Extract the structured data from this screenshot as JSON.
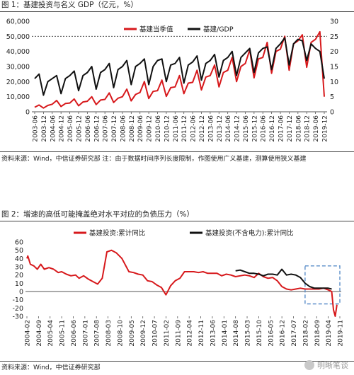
{
  "figure1": {
    "title": "图 1：基建投资与名义 GDP（亿元，%）",
    "source": "资料来源：Wind，中信证券研究部 注：由于数据时间序列长度限制，作图使用广义基建，测算使用狭义基建"
  },
  "figure2": {
    "title": "图 2：增速的高低可能掩盖绝对水平对应的负债压力（%）",
    "source": "资料来源：Wind，中信证券研究部"
  },
  "watermark": "明晰笔谈",
  "colors": {
    "red": "#d7191c",
    "black": "#111111",
    "box": "#5b8ec9",
    "grid_dash": "#333333"
  },
  "chart_data": [
    {
      "type": "line",
      "x_ticks": [
        "2003-06",
        "2003-12",
        "2004-06",
        "2004-12",
        "2005-06",
        "2005-12",
        "2006-06",
        "2006-12",
        "2007-06",
        "2007-12",
        "2008-06",
        "2008-12",
        "2009-06",
        "2009-12",
        "2010-06",
        "2010-12",
        "2011-06",
        "2011-12",
        "2012-06",
        "2012-12",
        "2013-06",
        "2013-12",
        "2014-06",
        "2014-12",
        "2015-06",
        "2015-12",
        "2016-06",
        "2016-12",
        "2017-06",
        "2017-12",
        "2018-06",
        "2018-12",
        "2019-06",
        "2019-12"
      ],
      "ylim_left": [
        0,
        60000
      ],
      "yticks_left": [
        "0",
        "10,000",
        "20,000",
        "30,000",
        "40,000",
        "50,000",
        "60,000"
      ],
      "ylim_right": [
        0,
        30
      ],
      "yticks_right": [
        "0",
        "5",
        "10",
        "15",
        "20",
        "25",
        "30"
      ],
      "reference_line_left": 50000,
      "legend_position": "top-center",
      "series": [
        {
          "name": "基建当季值",
          "axis": "left",
          "color": "#d7191c",
          "values": [
            3000,
            4500,
            2500,
            4200,
            5000,
            7500,
            3500,
            5500,
            5800,
            8500,
            4000,
            6500,
            7000,
            10000,
            4800,
            7800,
            8200,
            12500,
            6200,
            9000,
            10000,
            15000,
            7200,
            11500,
            12800,
            20000,
            8800,
            13500,
            14000,
            21000,
            10200,
            16000,
            16500,
            24000,
            12000,
            19000,
            19500,
            27500,
            14500,
            23000,
            24000,
            31000,
            16500,
            26000,
            27500,
            36000,
            20000,
            30000,
            32000,
            41000,
            22500,
            35000,
            36000,
            46000,
            25500,
            40000,
            41500,
            50000,
            27500,
            45000,
            47000,
            51000,
            29500,
            46000,
            48000,
            53000,
            10000
          ]
        },
        {
          "name": "基建/GDP",
          "axis": "right",
          "color": "#111111",
          "values": [
            11,
            12.5,
            5.5,
            10,
            11,
            12,
            6,
            11,
            12,
            13.5,
            7,
            12,
            13,
            15,
            7.5,
            13,
            14,
            16,
            8,
            14,
            15,
            17,
            9,
            15,
            16,
            17.5,
            9,
            15,
            17,
            17.5,
            10,
            15.5,
            16,
            18,
            9.5,
            15.5,
            16.5,
            18.5,
            10.5,
            16,
            17,
            19,
            11.5,
            17,
            18,
            20,
            12,
            18,
            19.5,
            21,
            13,
            19.5,
            21,
            21.5,
            14,
            21,
            22.5,
            24.5,
            15.5,
            22.5,
            24,
            23.5,
            17,
            22.5,
            21,
            20,
            11
          ]
        }
      ]
    },
    {
      "type": "line",
      "x_ticks": [
        "2004-02",
        "2004-09",
        "2005-04",
        "2005-11",
        "2006-06",
        "2007-01",
        "2007-08",
        "2008-03",
        "2008-10",
        "2009-05",
        "2009-12",
        "2010-07",
        "2011-02",
        "2011-09",
        "2012-04",
        "2012-11",
        "2013-06",
        "2014-01",
        "2014-08",
        "2015-03",
        "2015-10",
        "2016-05",
        "2016-12",
        "2017-07",
        "2018-02",
        "2018-09",
        "2019-04",
        "2019-11"
      ],
      "ylim": [
        -30,
        60
      ],
      "yticks": [
        "-30",
        "-20",
        "-10",
        "0",
        "10",
        "20",
        "30",
        "40",
        "50",
        "60"
      ],
      "legend_position": "top",
      "series": [
        {
          "name": "基建投资:累计同比",
          "color": "#d7191c",
          "x": [
            0,
            0.08,
            0.3,
            0.6,
            0.9,
            1.2,
            1.5,
            1.9,
            2.3,
            2.7,
            3.0,
            3.4,
            3.8,
            4.2,
            4.5,
            4.9,
            5.3,
            5.7,
            6.1,
            6.5,
            6.9,
            7.3,
            7.7,
            8.2,
            8.8,
            9.2,
            9.6,
            10.0,
            10.4,
            10.8,
            11.2,
            11.6,
            12.0,
            12.4,
            12.8,
            13.2,
            13.6,
            14.0,
            14.4,
            14.8,
            15.2,
            15.6,
            16.0,
            16.4,
            16.8,
            17.2,
            17.6,
            18.0,
            18.4,
            18.8,
            19.2,
            19.6,
            20.0,
            20.4,
            20.8,
            21.2,
            21.6,
            22.0,
            22.4,
            22.8,
            23.2,
            23.6,
            24.0,
            24.4,
            24.8,
            25.2,
            25.6,
            26.0,
            26.3,
            26.45,
            26.6,
            26.75
          ],
          "values": [
            40,
            43,
            33,
            31,
            27,
            33,
            27,
            29,
            27,
            23,
            24,
            21,
            19,
            20,
            16,
            19,
            15,
            12,
            9,
            16,
            48,
            50,
            47,
            40,
            24,
            23,
            21,
            20,
            13,
            12,
            8,
            5,
            -4,
            7,
            13,
            16,
            24,
            24,
            24,
            23,
            24,
            22,
            22,
            22,
            19,
            21,
            20,
            18,
            19,
            20,
            19,
            17,
            22,
            18,
            16,
            17,
            13,
            6,
            3,
            2,
            3,
            4,
            3,
            3,
            3,
            3,
            4,
            2,
            0,
            -22,
            -30,
            -16
          ]
        },
        {
          "name": "基建投资(不含电力):累计同比",
          "color": "#111111",
          "x": [
            18.0,
            18.4,
            18.8,
            19.2,
            19.6,
            20.0,
            20.4,
            20.8,
            21.2,
            21.6,
            22.0,
            22.4,
            22.8,
            23.2,
            23.6,
            24.0,
            24.4,
            24.8,
            25.2,
            25.6,
            26.0,
            26.3
          ],
          "values": [
            25,
            26,
            24,
            22,
            22,
            21,
            19,
            21,
            21,
            20,
            27,
            20,
            21,
            20,
            17,
            10,
            6,
            4,
            4,
            4,
            4,
            3
          ]
        }
      ],
      "highlight_boxes": [
        {
          "x_range": [
            "2008-10",
            "2010-04"
          ],
          "y_range": [
            -4,
            60
          ]
        },
        {
          "x_range": [
            "2018-02",
            "2019-11"
          ],
          "y_range": [
            -15,
            31
          ]
        }
      ]
    }
  ]
}
